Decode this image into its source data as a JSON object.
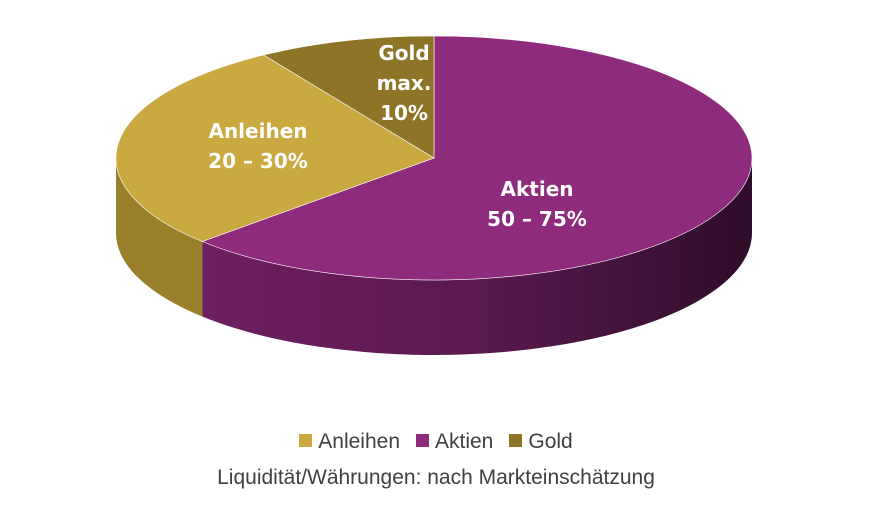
{
  "chart_data": {
    "type": "pie3d",
    "categories": [
      "Anleihen",
      "Aktien",
      "Gold"
    ],
    "values": [
      28,
      63,
      9
    ],
    "value_labels": [
      "20 – 30%",
      "50 – 75%",
      "max. 10%"
    ],
    "colors": [
      "#c9a940",
      "#8e2b7c",
      "#8e7426"
    ],
    "note": "Liquidität/Währungen: nach Markteinschätzung",
    "legend": "bottom"
  }
}
